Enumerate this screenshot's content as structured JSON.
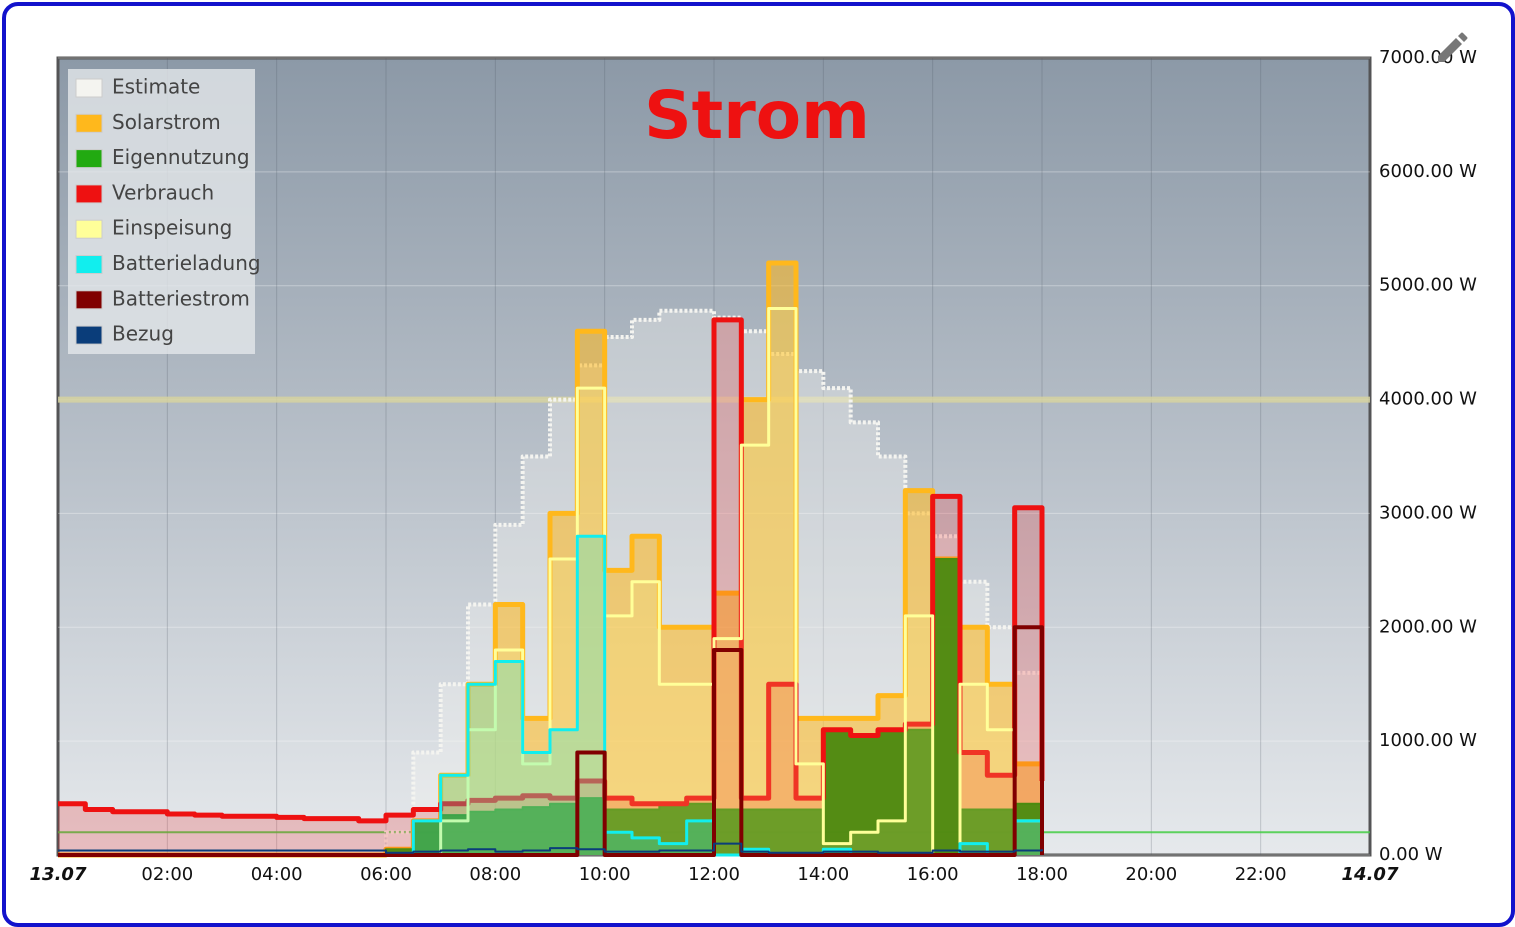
{
  "chart_data": {
    "type": "area",
    "title": "Strom",
    "x": [
      0,
      0.5,
      1,
      1.5,
      2,
      2.5,
      3,
      3.5,
      4,
      4.5,
      5,
      5.5,
      6,
      6.5,
      7,
      7.5,
      8,
      8.5,
      9,
      9.5,
      10,
      10.5,
      11,
      11.5,
      12,
      12.5,
      13,
      13.5,
      14,
      14.5,
      15,
      15.5,
      16,
      16.5,
      17,
      17.5,
      18
    ],
    "xlim": [
      0,
      24
    ],
    "xticks": [
      {
        "value": 0,
        "label": "13.07"
      },
      {
        "value": 2,
        "label": "02:00"
      },
      {
        "value": 4,
        "label": "04:00"
      },
      {
        "value": 6,
        "label": "06:00"
      },
      {
        "value": 8,
        "label": "08:00"
      },
      {
        "value": 10,
        "label": "10:00"
      },
      {
        "value": 12,
        "label": "12:00"
      },
      {
        "value": 14,
        "label": "14:00"
      },
      {
        "value": 16,
        "label": "16:00"
      },
      {
        "value": 18,
        "label": "18:00"
      },
      {
        "value": 20,
        "label": "20:00"
      },
      {
        "value": 22,
        "label": "22:00"
      },
      {
        "value": 24,
        "label": "14.07"
      }
    ],
    "ylim": [
      0,
      7000
    ],
    "yticks": [
      {
        "value": 0,
        "label": "0.00 W"
      },
      {
        "value": 1000,
        "label": "1000.00 W"
      },
      {
        "value": 2000,
        "label": "2000.00 W"
      },
      {
        "value": 3000,
        "label": "3000.00 W"
      },
      {
        "value": 4000,
        "label": "4000.00 W"
      },
      {
        "value": 5000,
        "label": "5000.00 W"
      },
      {
        "value": 6000,
        "label": "6000.00 W"
      },
      {
        "value": 7000,
        "label": "7000.00 W"
      }
    ],
    "grid": true,
    "legend": "top-left",
    "reference_lines": [
      {
        "value": 4000,
        "color": "#d6d2a0"
      },
      {
        "value": 200,
        "color": "#44cc44"
      }
    ],
    "series": [
      {
        "name": "Estimate",
        "color": "#f4f4f0",
        "values": [
          null,
          null,
          null,
          null,
          null,
          null,
          null,
          null,
          null,
          null,
          null,
          0,
          200,
          900,
          1500,
          2200,
          2900,
          3500,
          4000,
          4300,
          4550,
          4700,
          4780,
          4780,
          4720,
          4600,
          4400,
          4250,
          4100,
          3800,
          3500,
          3000,
          2800,
          2400,
          2000,
          1600,
          1000
        ]
      },
      {
        "name": "Solarstrom",
        "color": "#ffb81c",
        "values": [
          0,
          0,
          0,
          0,
          0,
          0,
          0,
          0,
          0,
          0,
          0,
          0,
          50,
          300,
          700,
          1500,
          2200,
          1200,
          3000,
          4600,
          2500,
          2800,
          2000,
          2000,
          2300,
          4000,
          5200,
          1200,
          1200,
          1200,
          1400,
          3200,
          2600,
          2000,
          1500,
          800,
          650
        ]
      },
      {
        "name": "Eigennutzung",
        "color": "#22aa11",
        "values": [
          0,
          0,
          0,
          0,
          0,
          0,
          0,
          0,
          0,
          0,
          0,
          0,
          50,
          300,
          350,
          380,
          400,
          420,
          450,
          500,
          400,
          400,
          450,
          450,
          400,
          400,
          400,
          400,
          1100,
          1050,
          1100,
          1100,
          2600,
          400,
          400,
          450,
          500
        ]
      },
      {
        "name": "Verbrauch",
        "color": "#ee1111",
        "values": [
          450,
          400,
          380,
          380,
          360,
          350,
          340,
          340,
          330,
          320,
          320,
          300,
          350,
          400,
          450,
          480,
          500,
          520,
          500,
          650,
          500,
          450,
          450,
          500,
          4700,
          500,
          1500,
          500,
          1100,
          1050,
          1100,
          1150,
          3150,
          900,
          700,
          3050,
          650
        ]
      },
      {
        "name": "Einspeisung",
        "color": "#ffff99",
        "values": [
          0,
          0,
          0,
          0,
          0,
          0,
          0,
          0,
          0,
          0,
          0,
          0,
          0,
          0,
          300,
          1100,
          1800,
          800,
          2600,
          4100,
          2100,
          2400,
          1500,
          1500,
          1900,
          3600,
          4800,
          800,
          100,
          200,
          300,
          2100,
          0,
          1500,
          1100,
          300,
          150
        ]
      },
      {
        "name": "Batterieladung",
        "color": "#11eeee",
        "values": [
          0,
          0,
          0,
          0,
          0,
          0,
          0,
          0,
          0,
          0,
          0,
          0,
          0,
          300,
          700,
          1500,
          1700,
          900,
          1100,
          2800,
          200,
          150,
          100,
          300,
          0,
          50,
          0,
          0,
          50,
          0,
          0,
          0,
          0,
          100,
          0,
          300,
          200
        ]
      },
      {
        "name": "Batteriestrom",
        "color": "#800000",
        "values": [
          0,
          0,
          0,
          0,
          0,
          0,
          0,
          0,
          0,
          0,
          0,
          0,
          0,
          0,
          0,
          0,
          0,
          0,
          0,
          900,
          0,
          0,
          0,
          0,
          1800,
          0,
          0,
          0,
          0,
          0,
          0,
          0,
          0,
          0,
          0,
          2000,
          0
        ]
      },
      {
        "name": "Bezug",
        "color": "#0a3d7a",
        "values": [
          40,
          40,
          40,
          40,
          40,
          40,
          40,
          40,
          40,
          40,
          40,
          40,
          20,
          30,
          40,
          50,
          30,
          40,
          60,
          50,
          30,
          30,
          40,
          40,
          100,
          30,
          20,
          20,
          30,
          30,
          20,
          20,
          40,
          30,
          30,
          40,
          50
        ]
      }
    ]
  }
}
